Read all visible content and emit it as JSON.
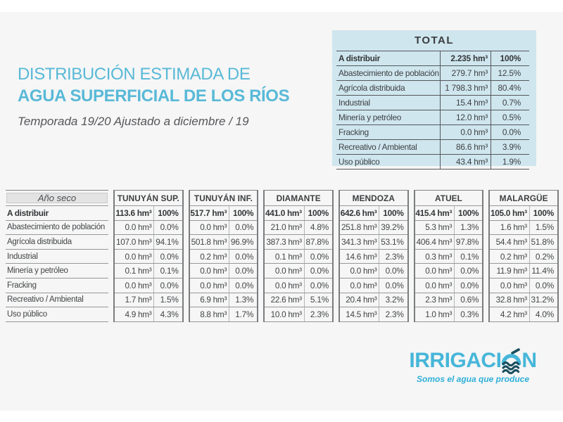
{
  "page": {
    "title_line1": "DISTRIBUCIÓN ESTIMADA DE",
    "title_line2": "AGUA SUPERFICIAL DE LOS RÍOS",
    "subtitle": "Temporada 19/20 Ajustado a diciembre / 19"
  },
  "colors": {
    "accent_blue": "#58b9d7",
    "total_table_bg": "#cfe6ee",
    "page_bg": "#f6f6f6",
    "dark_line": "#55585b",
    "row_line": "#97989b",
    "logo_blue": "#46b6d9",
    "logo_wave_dark": "#1a4f5f",
    "tagline_blue": "#2fb0d8"
  },
  "total_table": {
    "title": "TOTAL",
    "rows": [
      {
        "label": "A distribuir",
        "value": "2.235 hm³",
        "pct": "100%",
        "bold": true
      },
      {
        "label": "Abastecimiento de población",
        "value": "279.7 hm³",
        "pct": "12.5%"
      },
      {
        "label": "Agrícola distribuida",
        "value": "1 798.3 hm³",
        "pct": "80.4%"
      },
      {
        "label": "Industrial",
        "value": "15.4 hm³",
        "pct": "0.7%"
      },
      {
        "label": "Minería y petróleo",
        "value": "12.0 hm³",
        "pct": "0.5%"
      },
      {
        "label": "Fracking",
        "value": "0.0 hm³",
        "pct": "0.0%"
      },
      {
        "label": "Recreativo / Ambiental",
        "value": "86.6 hm³",
        "pct": "3.9%"
      },
      {
        "label": "Uso público",
        "value": "43.4 hm³",
        "pct": "1.9%"
      }
    ]
  },
  "main_table": {
    "corner_label": "Año seco",
    "row_labels": [
      "A distribuir",
      "Abastecimiento de población",
      "Agrícola distribuida",
      "Industrial",
      "Minería y petróleo",
      "Fracking",
      "Recreativo / Ambiental",
      "Uso público"
    ],
    "groups": [
      {
        "name": "TUNUYÁN SUP.",
        "values": [
          "113.6 hm³",
          "0.0 hm³",
          "107.0 hm³",
          "0.0 hm³",
          "0.1 hm³",
          "0.0 hm³",
          "1.7 hm³",
          "4.9 hm³"
        ],
        "pcts": [
          "100%",
          "0.0%",
          "94.1%",
          "0.0%",
          "0.1%",
          "0.0%",
          "1.5%",
          "4.3%"
        ]
      },
      {
        "name": "TUNUYÁN INF.",
        "values": [
          "517.7 hm³",
          "0.0 hm³",
          "501.8 hm³",
          "0.2 hm³",
          "0.0 hm³",
          "0.0 hm³",
          "6.9 hm³",
          "8.8 hm³"
        ],
        "pcts": [
          "100%",
          "0.0%",
          "96.9%",
          "0.0%",
          "0.0%",
          "0.0%",
          "1.3%",
          "1.7%"
        ]
      },
      {
        "name": "DIAMANTE",
        "values": [
          "441.0 hm³",
          "21.0 hm³",
          "387.3 hm³",
          "0.1 hm³",
          "0.0 hm³",
          "0.0 hm³",
          "22.6 hm³",
          "10.0 hm³"
        ],
        "pcts": [
          "100%",
          "4.8%",
          "87.8%",
          "0.0%",
          "0.0%",
          "0.0%",
          "5.1%",
          "2.3%"
        ]
      },
      {
        "name": "MENDOZA",
        "values": [
          "642.6 hm³",
          "251.8 hm³",
          "341.3 hm³",
          "14.6 hm³",
          "0.0 hm³",
          "0.0 hm³",
          "20.4 hm³",
          "14.5 hm³"
        ],
        "pcts": [
          "100%",
          "39.2%",
          "53.1%",
          "2.3%",
          "0.0%",
          "0.0%",
          "3.2%",
          "2.3%"
        ]
      },
      {
        "name": "ATUEL",
        "values": [
          "415.4 hm³",
          "5.3 hm³",
          "406.4 hm³",
          "0.3 hm³",
          "0.0 hm³",
          "0.0 hm³",
          "2.3 hm³",
          "1.0 hm³"
        ],
        "pcts": [
          "100%",
          "1.3%",
          "97.8%",
          "0.1%",
          "0.0%",
          "0.0%",
          "0.6%",
          "0.3%"
        ]
      },
      {
        "name": "MALARGÜE",
        "values": [
          "105.0 hm³",
          "1.6 hm³",
          "54.4 hm³",
          "0.2 hm³",
          "11.9 hm³",
          "0.0 hm³",
          "32.8 hm³",
          "4.2 hm³"
        ],
        "pcts": [
          "100%",
          "1.5%",
          "51.8%",
          "0.2%",
          "11.4%",
          "0.0%",
          "31.2%",
          "4.0%"
        ]
      }
    ]
  },
  "logo": {
    "name_left": "IRRIGACI",
    "name_right": "N",
    "tagline": "Somos el agua que produce"
  }
}
